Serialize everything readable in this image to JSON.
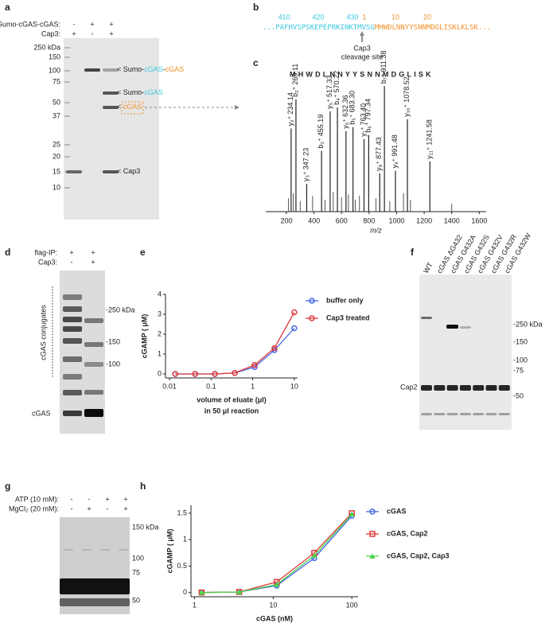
{
  "panels": {
    "a": {
      "label": "a",
      "rows": [
        {
          "name": "Sumo-cGAS-cGAS:",
          "signs": [
            "-",
            "+",
            "+"
          ]
        },
        {
          "name": "Cap3:",
          "signs": [
            "+",
            "-",
            "+"
          ]
        }
      ],
      "markers": [
        "250 kDa",
        "150",
        "100",
        "75",
        "50",
        "37",
        "25",
        "20",
        "15",
        "10"
      ],
      "bands": [
        [
          "< Sumo-",
          "cGAS",
          "-",
          "cGAS"
        ],
        [
          "< Sumo-",
          "cGAS"
        ],
        [
          "< ",
          "cGAS"
        ],
        [
          "< Cap3"
        ]
      ]
    },
    "b": {
      "label": "b",
      "positions": [
        "410",
        "420",
        "430",
        "1",
        "10",
        "20"
      ],
      "sequence": [
        "...PAFHVSPSKEPEPRKINKTMVSG",
        "MHWDLNNYYSNNMDGLISKLKLSK..."
      ],
      "site": [
        "Cap3",
        "cleavage site"
      ]
    },
    "c": {
      "label": "c"
    },
    "d": {
      "label": "d",
      "rows": [
        {
          "name": "flag-IP:",
          "signs": [
            "+",
            "+"
          ]
        },
        {
          "name": "Cap3:",
          "signs": [
            "-",
            "+"
          ]
        }
      ],
      "markers": [
        "-250 kDa",
        "-150",
        "-100"
      ],
      "side": [
        "cGAS conjugates",
        "cGAS"
      ]
    },
    "e": {
      "label": "e"
    },
    "f": {
      "label": "f",
      "lanes": [
        "WT",
        "cGAS ΔG432",
        "cGAS G432A",
        "cGAS G432S",
        "cGAS G432V",
        "cGAS G432R",
        "cGAS G432W"
      ],
      "markers": [
        "-250 kDa",
        "-150",
        "-100",
        "-75",
        "-50"
      ],
      "side": "Cap2"
    },
    "g": {
      "label": "g",
      "rows": [
        {
          "name": "ATP (10 mM):",
          "signs": [
            "-",
            "-",
            "+",
            "+"
          ]
        },
        {
          "name": "MgCl₂ (20 mM):",
          "signs": [
            "-",
            "+",
            "-",
            "+"
          ]
        }
      ],
      "markers": [
        "150 kDa",
        "100",
        "75",
        "50"
      ]
    },
    "h": {
      "label": "h"
    }
  },
  "chart_data": [
    {
      "type": "stem",
      "peptide": "MHWDLNNYYSNNMDGLISK",
      "xlabel": "m/z",
      "x": [
        234.14,
        269.11,
        347.23,
        455.19,
        517.33,
        570.22,
        632.36,
        683.3,
        763.4,
        797.34,
        877.43,
        911.38,
        991.48,
        1078.52,
        1241.58
      ],
      "x_labels": [
        "234.14",
        "269.11",
        "347.23",
        "455.19",
        "517.33",
        "570.22",
        "632.36",
        "683.30",
        "763.40",
        "797.34",
        "877.43",
        "911.38",
        "991.48",
        "1078.52",
        "1241.58"
      ],
      "ions": [
        "y₂⁺",
        "b₂⁺",
        "y₃⁺",
        "b₃⁺",
        "y₅⁺",
        "b₄⁺",
        "y₆⁺",
        "b₅⁺",
        "y₇⁺",
        "b₆⁺",
        "y₈⁺",
        "b₇⁺",
        "y₉⁺",
        "y₁₀⁺",
        "y₁₁⁺"
      ],
      "values": [
        63,
        85,
        21,
        46,
        76,
        79,
        61,
        64,
        55,
        58,
        29,
        95,
        31,
        70,
        38
      ],
      "minor": {
        "x": [
          215,
          250,
          300,
          390,
          480,
          540,
          600,
          650,
          700,
          730,
          850,
          950,
          1050,
          1100,
          1400
        ],
        "values": [
          10,
          14,
          8,
          12,
          9,
          15,
          11,
          13,
          9,
          12,
          10,
          8,
          14,
          9,
          6
        ]
      },
      "xlim": [
        50,
        1650
      ],
      "xticks": [
        200,
        400,
        600,
        800,
        1000,
        1200,
        1400,
        1600
      ],
      "ylim": [
        0,
        100
      ],
      "color": "#555555"
    },
    {
      "type": "line",
      "ylabel": "cGAMP ( μM)",
      "xlabel": [
        "volume of eluate (μl)",
        "in 50  μl reaction"
      ],
      "xlog": true,
      "x": [
        0.0137,
        0.0412,
        0.123,
        0.37,
        1.11,
        3.33,
        10
      ],
      "series": [
        {
          "name": "buffer only",
          "color": "#4566e6",
          "marker": "circle",
          "values": [
            0,
            0,
            0,
            0.05,
            0.35,
            1.2,
            2.3
          ]
        },
        {
          "name": "Cap3 treated",
          "color": "#e03a3a",
          "marker": "circle",
          "values": [
            0,
            0,
            0,
            0.05,
            0.45,
            1.3,
            3.1
          ]
        }
      ],
      "xlim": [
        0.008,
        12
      ],
      "xticks": [
        0.01,
        0.1,
        1,
        10
      ],
      "ylim": [
        -0.2,
        4
      ],
      "yticks": [
        0,
        1,
        2,
        3,
        4
      ],
      "legend": "right"
    },
    {
      "type": "line",
      "ylabel": "cGAMP ( μM)",
      "xlabel": [
        "cGAS (nM)"
      ],
      "xlog": true,
      "x": [
        1.23,
        3.7,
        11.1,
        33.3,
        100
      ],
      "series": [
        {
          "name": "cGAS",
          "color": "#4566e6",
          "marker": "circle",
          "values": [
            0,
            0.01,
            0.13,
            0.65,
            1.45
          ]
        },
        {
          "name": "cGAS, Cap2",
          "color": "#e03a3a",
          "marker": "square",
          "values": [
            0,
            0.01,
            0.2,
            0.75,
            1.5
          ]
        },
        {
          "name": "cGAS, Cap2, Cap3",
          "color": "#4ad44a",
          "marker": "triangle",
          "values": [
            0,
            0.01,
            0.15,
            0.7,
            1.48
          ]
        }
      ],
      "xlim": [
        0.9,
        120
      ],
      "xticks": [
        1,
        10,
        100
      ],
      "ylim": [
        -0.08,
        1.65
      ],
      "yticks": [
        0,
        0.5,
        1,
        1.5
      ],
      "legend": "right"
    }
  ]
}
